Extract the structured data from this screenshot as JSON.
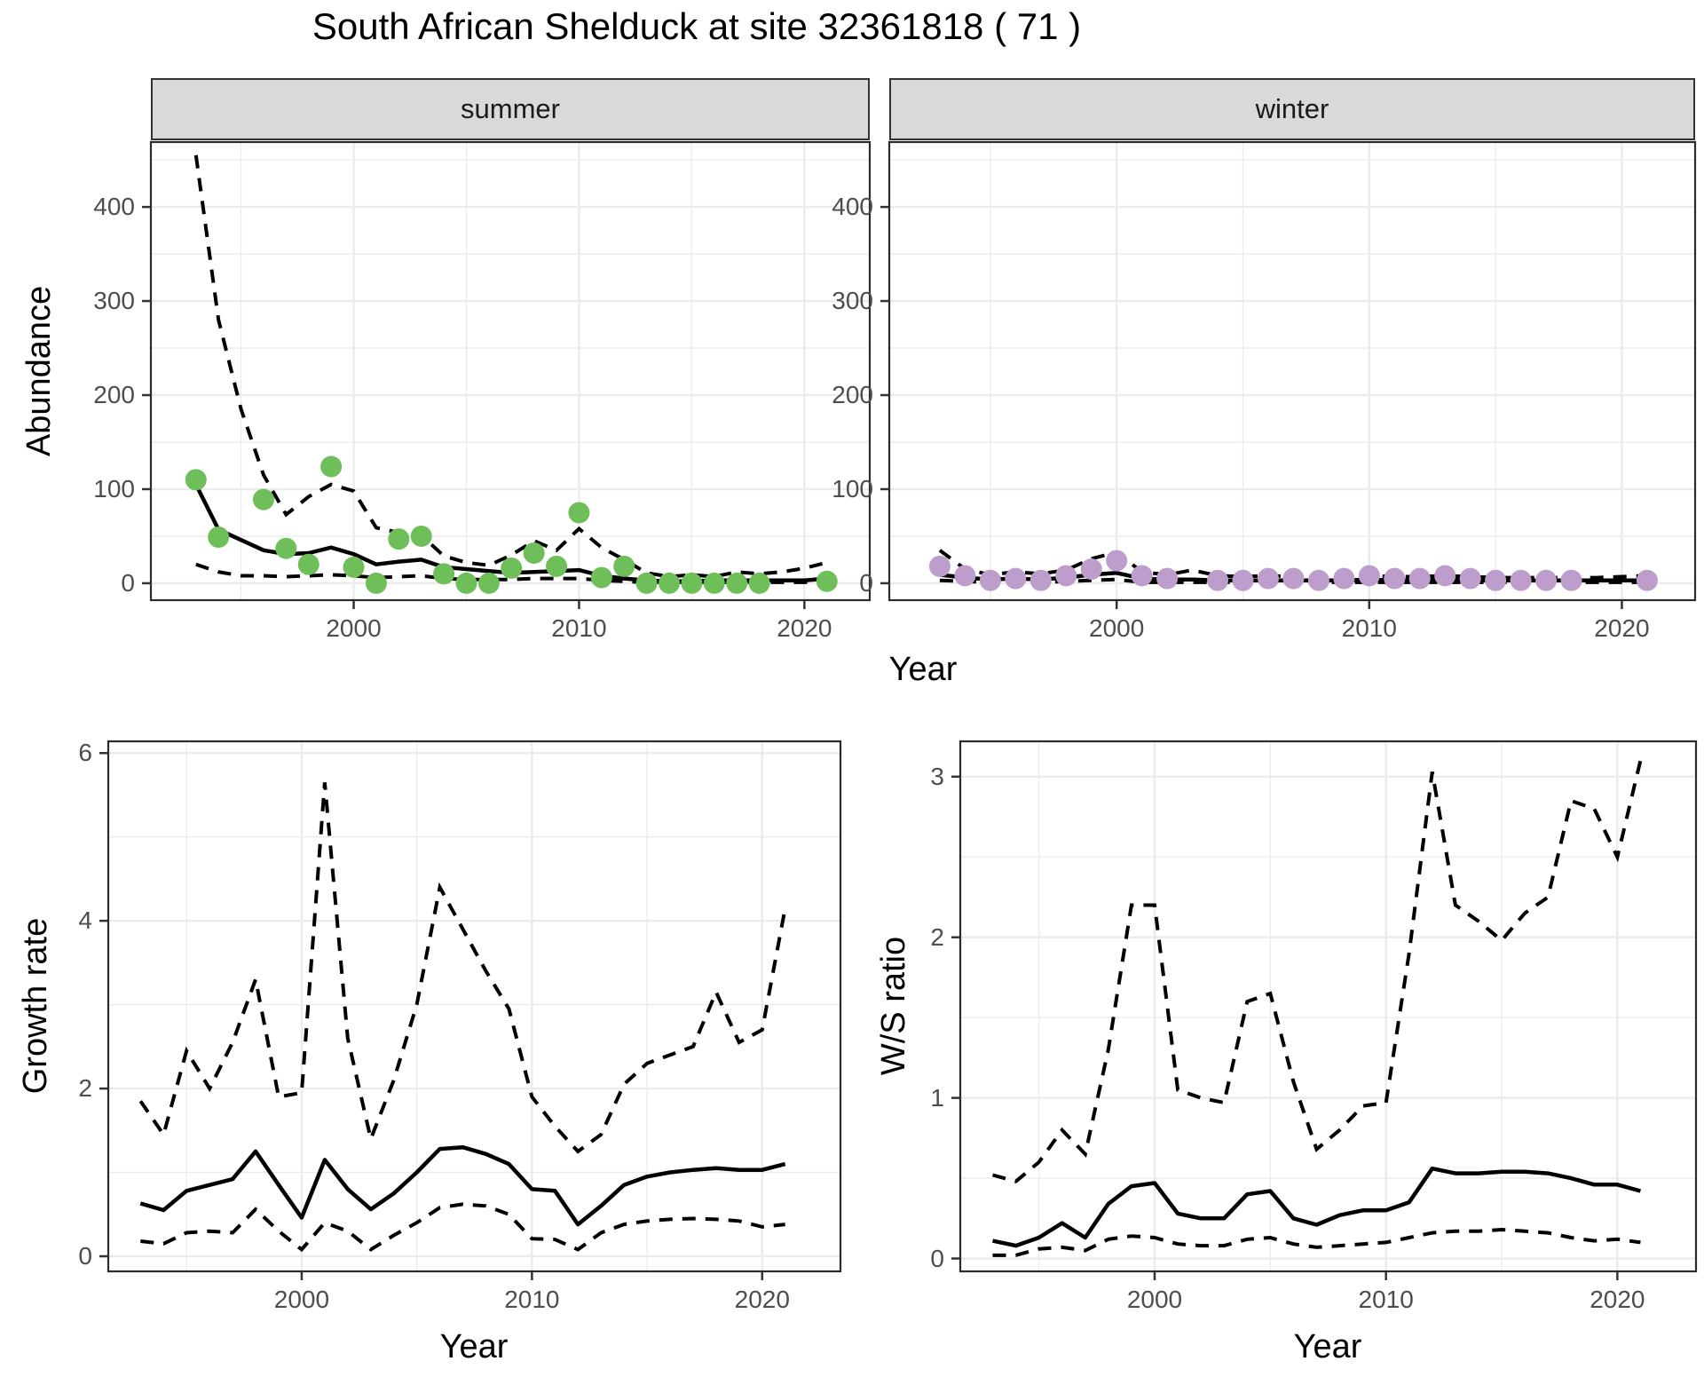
{
  "title": "South African Shelduck at site 32361818 ( 71 )",
  "axis_titles": {
    "abundance": "Abundance",
    "year_top": "Year",
    "growth": "Growth rate",
    "year_growth": "Year",
    "ws": "W/S ratio",
    "year_ws": "Year"
  },
  "colors": {
    "summer_point": "#6ebe5a",
    "winter_point": "#bd9dcc",
    "line": "#000000",
    "grid": "#ebebeb",
    "panel_border": "#2b2b2b",
    "strip_bg": "#d9d9d9",
    "tick_text": "#4d4d4d"
  },
  "chart_data": [
    {
      "id": "summer",
      "type": "scatter",
      "facet_label": "summer",
      "xlabel": "Year",
      "ylabel": "Abundance",
      "xlim": [
        1991.0,
        2022.9
      ],
      "ylim": [
        -18,
        469
      ],
      "x_ticks": [
        2000,
        2010,
        2020
      ],
      "y_ticks": [
        0,
        100,
        200,
        300,
        400
      ],
      "point_years": [
        1993,
        1994,
        1996,
        1997,
        1998,
        1999,
        2000,
        2001,
        2002,
        2003,
        2004,
        2005,
        2006,
        2007,
        2008,
        2009,
        2010,
        2011,
        2012,
        2013,
        2014,
        2015,
        2016,
        2017,
        2018,
        2021
      ],
      "point_values": [
        110,
        49,
        89,
        37,
        20,
        124,
        17,
        0,
        47,
        50,
        10,
        0,
        0,
        16,
        32,
        18,
        75,
        6,
        18,
        0,
        0,
        0,
        0,
        0,
        0,
        2
      ],
      "line_years": [
        1993,
        1994,
        1995,
        1996,
        1997,
        1998,
        1999,
        2000,
        2001,
        2002,
        2003,
        2004,
        2005,
        2006,
        2007,
        2008,
        2009,
        2010,
        2011,
        2012,
        2013,
        2014,
        2015,
        2016,
        2017,
        2018,
        2019,
        2020,
        2021
      ],
      "fit": [
        105,
        57,
        46,
        35,
        31,
        32,
        38,
        31,
        20,
        23,
        25,
        17,
        15,
        13,
        11,
        12,
        13,
        14,
        8,
        5,
        3,
        2,
        2,
        3,
        3,
        3,
        3,
        3,
        5
      ],
      "ci_upper": [
        455,
        280,
        185,
        115,
        73,
        92,
        105,
        98,
        59,
        54,
        51,
        29,
        22,
        19,
        30,
        45,
        35,
        58,
        38,
        25,
        11,
        7,
        9,
        7,
        12,
        10,
        12,
        16,
        22
      ],
      "ci_lower": [
        20,
        12,
        8,
        8,
        7,
        8,
        9,
        8,
        6,
        7,
        8,
        5,
        4,
        4,
        4,
        5,
        5,
        5,
        3,
        2,
        1,
        1,
        1,
        1,
        1,
        1,
        1,
        1,
        2
      ]
    },
    {
      "id": "winter",
      "type": "scatter",
      "facet_label": "winter",
      "xlabel": "Year",
      "ylabel": "Abundance",
      "xlim": [
        1991.0,
        2022.9
      ],
      "ylim": [
        -18,
        469
      ],
      "x_ticks": [
        2000,
        2010,
        2020
      ],
      "y_ticks": [
        0,
        100,
        200,
        300,
        400
      ],
      "point_years": [
        1993,
        1994,
        1995,
        1996,
        1997,
        1998,
        1999,
        2000,
        2001,
        2002,
        2004,
        2005,
        2006,
        2007,
        2008,
        2009,
        2010,
        2011,
        2012,
        2013,
        2014,
        2015,
        2016,
        2017,
        2018,
        2021
      ],
      "point_values": [
        18,
        8,
        3,
        5,
        3,
        8,
        15,
        24,
        8,
        5,
        3,
        3,
        5,
        5,
        3,
        5,
        8,
        5,
        5,
        8,
        5,
        3,
        3,
        3,
        3,
        3
      ],
      "line_years": [
        1993,
        1994,
        1995,
        1996,
        1997,
        1998,
        1999,
        2000,
        2001,
        2002,
        2003,
        2004,
        2005,
        2006,
        2007,
        2008,
        2009,
        2010,
        2011,
        2012,
        2013,
        2014,
        2015,
        2016,
        2017,
        2018,
        2019,
        2020,
        2021
      ],
      "fit": [
        9,
        6,
        4,
        5,
        4,
        6,
        9,
        11,
        5,
        4,
        4,
        3,
        3,
        3,
        3,
        3,
        3,
        4,
        3,
        3,
        4,
        3,
        3,
        3,
        3,
        3,
        3,
        3,
        3
      ],
      "ci_upper": [
        35,
        15,
        9,
        12,
        10,
        14,
        26,
        33,
        12,
        9,
        14,
        8,
        7,
        8,
        7,
        6,
        7,
        8,
        7,
        7,
        8,
        7,
        6,
        6,
        6,
        6,
        6,
        7,
        8
      ],
      "ci_lower": [
        3,
        2,
        1,
        1,
        1,
        2,
        3,
        4,
        1,
        1,
        1,
        1,
        1,
        1,
        1,
        1,
        1,
        1,
        1,
        1,
        1,
        1,
        1,
        1,
        1,
        1,
        1,
        1,
        1
      ]
    },
    {
      "id": "growth",
      "type": "line",
      "facet_label": "",
      "xlabel": "Year",
      "ylabel": "Growth rate",
      "xlim": [
        1991.6,
        2023.4
      ],
      "ylim": [
        -0.18,
        6.14
      ],
      "x_ticks": [
        2000,
        2010,
        2020
      ],
      "y_ticks": [
        0,
        2,
        4,
        6
      ],
      "point_years": [],
      "point_values": [],
      "line_years": [
        1993,
        1994,
        1995,
        1996,
        1997,
        1998,
        1999,
        2000,
        2001,
        2002,
        2003,
        2004,
        2005,
        2006,
        2007,
        2008,
        2009,
        2010,
        2011,
        2012,
        2013,
        2014,
        2015,
        2016,
        2017,
        2018,
        2019,
        2020,
        2021
      ],
      "fit": [
        0.63,
        0.55,
        0.78,
        0.85,
        0.92,
        1.25,
        0.85,
        0.46,
        1.15,
        0.8,
        0.56,
        0.75,
        1.0,
        1.28,
        1.3,
        1.22,
        1.1,
        0.8,
        0.78,
        0.38,
        0.6,
        0.85,
        0.95,
        1.0,
        1.03,
        1.05,
        1.03,
        1.03,
        1.1
      ],
      "ci_upper": [
        1.85,
        1.45,
        2.45,
        2.0,
        2.55,
        3.3,
        1.9,
        1.95,
        5.65,
        2.6,
        1.4,
        2.1,
        3.0,
        4.4,
        3.9,
        3.4,
        2.95,
        1.9,
        1.55,
        1.25,
        1.45,
        2.05,
        2.3,
        2.4,
        2.5,
        3.15,
        2.55,
        2.7,
        4.15
      ],
      "ci_lower": [
        0.18,
        0.15,
        0.28,
        0.3,
        0.28,
        0.56,
        0.3,
        0.08,
        0.4,
        0.3,
        0.08,
        0.25,
        0.4,
        0.58,
        0.62,
        0.6,
        0.5,
        0.21,
        0.2,
        0.08,
        0.28,
        0.38,
        0.42,
        0.44,
        0.45,
        0.44,
        0.42,
        0.35,
        0.38
      ]
    },
    {
      "id": "ws",
      "type": "line",
      "facet_label": "",
      "xlabel": "Year",
      "ylabel": "W/S ratio",
      "xlim": [
        1991.6,
        2023.4
      ],
      "ylim": [
        -0.08,
        3.22
      ],
      "x_ticks": [
        2000,
        2010,
        2020
      ],
      "y_ticks": [
        0,
        1,
        2,
        3
      ],
      "point_years": [],
      "point_values": [],
      "line_years": [
        1993,
        1994,
        1995,
        1996,
        1997,
        1998,
        1999,
        2000,
        2001,
        2002,
        2003,
        2004,
        2005,
        2006,
        2007,
        2008,
        2009,
        2010,
        2011,
        2012,
        2013,
        2014,
        2015,
        2016,
        2017,
        2018,
        2019,
        2020,
        2021
      ],
      "fit": [
        0.11,
        0.08,
        0.13,
        0.22,
        0.13,
        0.34,
        0.45,
        0.47,
        0.28,
        0.25,
        0.25,
        0.4,
        0.42,
        0.25,
        0.21,
        0.27,
        0.3,
        0.3,
        0.35,
        0.56,
        0.53,
        0.53,
        0.54,
        0.54,
        0.53,
        0.5,
        0.46,
        0.46,
        0.42
      ],
      "ci_upper": [
        0.52,
        0.48,
        0.6,
        0.8,
        0.65,
        1.3,
        2.2,
        2.2,
        1.05,
        1.0,
        0.97,
        1.6,
        1.65,
        1.1,
        0.68,
        0.8,
        0.95,
        0.97,
        1.9,
        3.03,
        2.2,
        2.1,
        1.98,
        2.15,
        2.25,
        2.85,
        2.8,
        2.5,
        3.1
      ],
      "ci_lower": [
        0.02,
        0.02,
        0.06,
        0.07,
        0.05,
        0.12,
        0.14,
        0.13,
        0.09,
        0.08,
        0.08,
        0.12,
        0.13,
        0.09,
        0.07,
        0.08,
        0.09,
        0.1,
        0.13,
        0.16,
        0.17,
        0.17,
        0.18,
        0.17,
        0.16,
        0.13,
        0.11,
        0.12,
        0.1
      ]
    }
  ]
}
